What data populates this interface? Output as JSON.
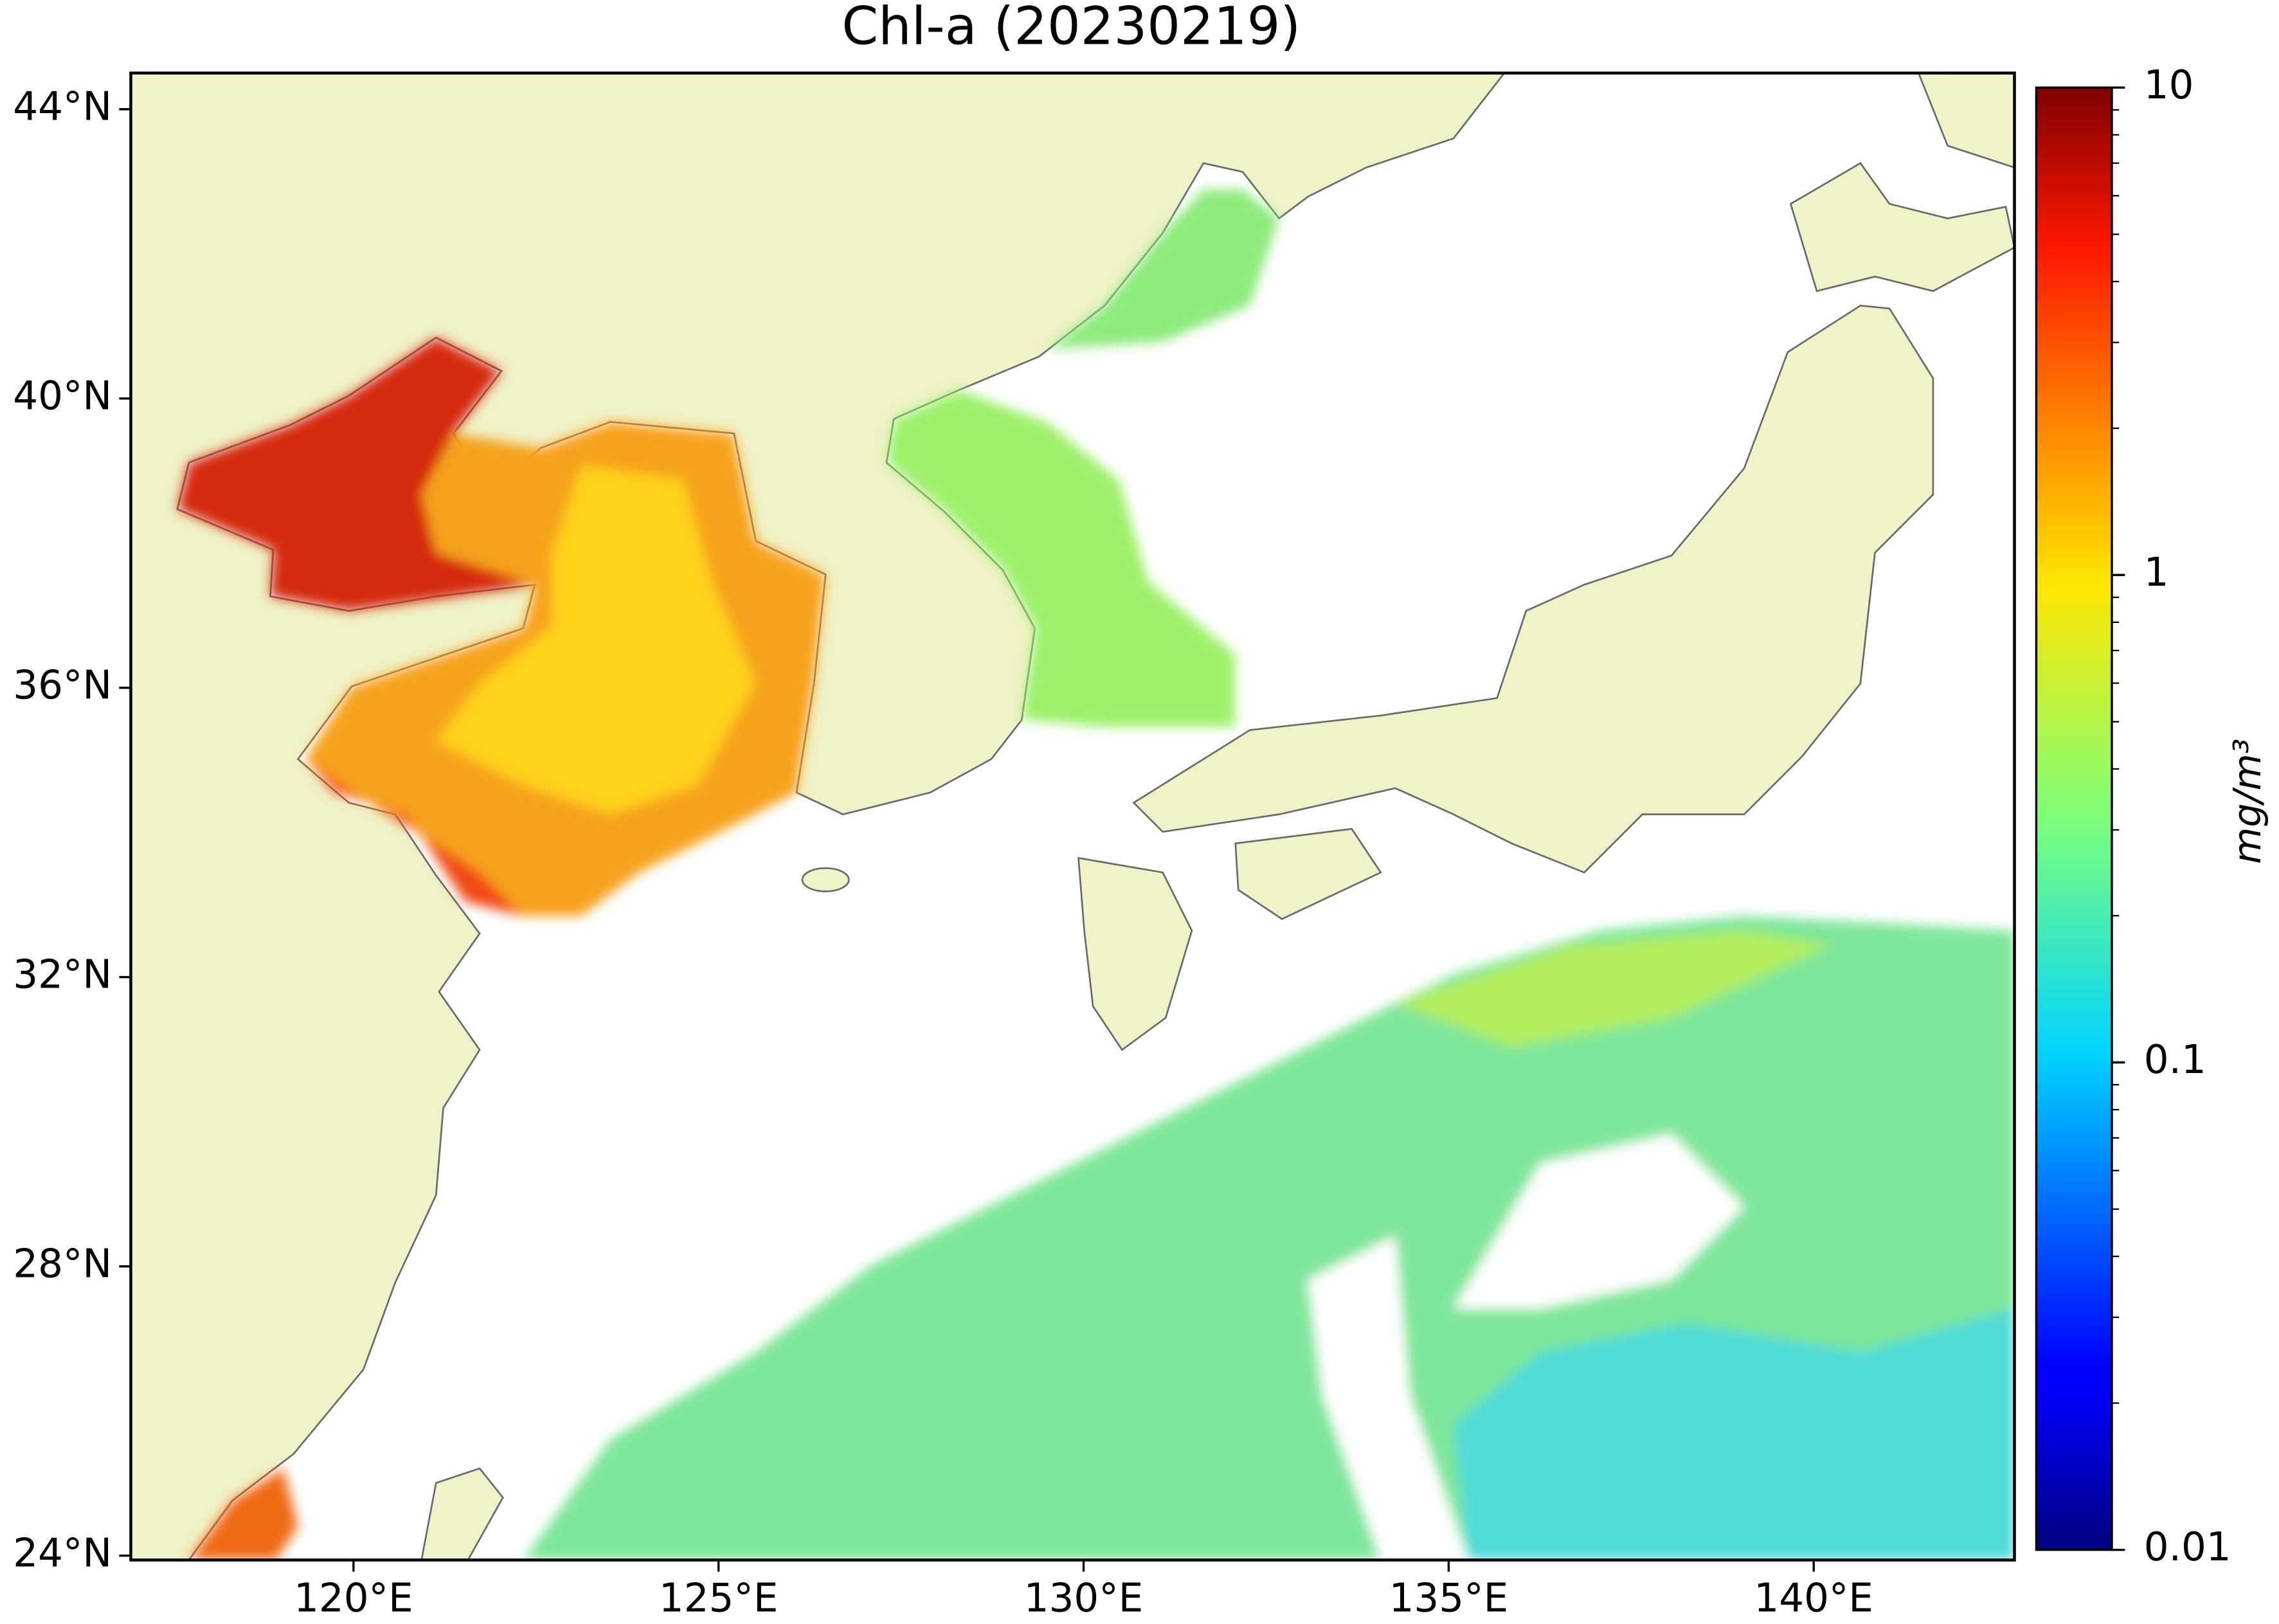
{
  "map": {
    "title": "Chl-a (20230219)",
    "xlim": [
      116.95,
      142.75
    ],
    "ylim": [
      23.94,
      44.5
    ],
    "xticks": [
      {
        "value": 120,
        "label": "120°E"
      },
      {
        "value": 125,
        "label": "125°E"
      },
      {
        "value": 130,
        "label": "130°E"
      },
      {
        "value": 135,
        "label": "135°E"
      },
      {
        "value": 140,
        "label": "140°E"
      }
    ],
    "yticks": [
      {
        "value": 24,
        "label": "24°N"
      },
      {
        "value": 28,
        "label": "28°N"
      },
      {
        "value": 32,
        "label": "32°N"
      },
      {
        "value": 36,
        "label": "36°N"
      },
      {
        "value": 40,
        "label": "40°N"
      },
      {
        "value": 44,
        "label": "44°N"
      }
    ],
    "colorbar": {
      "label": "mg/m³",
      "log": true,
      "lim": [
        0.01,
        10
      ],
      "ticks": [
        0.01,
        0.1,
        1,
        10
      ]
    }
  }
}
